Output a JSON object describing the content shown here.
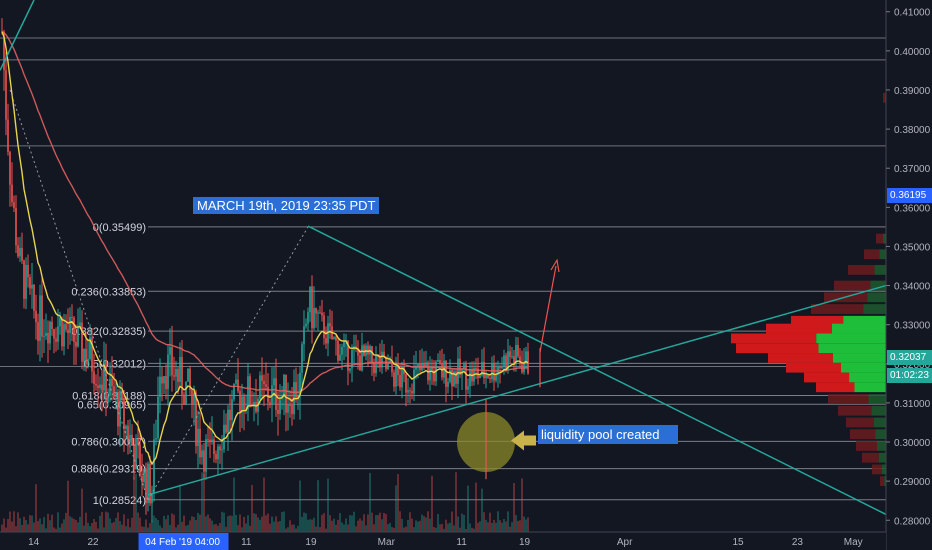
{
  "chart_data": {
    "type": "candlestick",
    "y_axis": {
      "range": [
        0.277,
        0.413
      ],
      "ticks": [
        "0.41000",
        "0.40000",
        "0.39000",
        "0.38000",
        "0.37000",
        "0.36000",
        "0.35000",
        "0.34000",
        "0.33000",
        "0.32000",
        "0.31000",
        "0.30000",
        "0.29000",
        "0.28000"
      ],
      "tick_values": [
        0.41,
        0.4,
        0.39,
        0.38,
        0.37,
        0.36,
        0.35,
        0.34,
        0.33,
        0.32,
        0.31,
        0.3,
        0.29,
        0.28
      ]
    },
    "x_axis": {
      "ticks": [
        {
          "label": "14",
          "frac": 0.038
        },
        {
          "label": "22",
          "frac": 0.105
        },
        {
          "label": "04 Feb '19  04:00",
          "frac": 0.206,
          "highlight": true
        },
        {
          "label": "11",
          "frac": 0.278
        },
        {
          "label": "19",
          "frac": 0.351
        },
        {
          "label": "Mar",
          "frac": 0.436
        },
        {
          "label": "11",
          "frac": 0.521
        },
        {
          "label": "19",
          "frac": 0.592
        },
        {
          "label": "Apr",
          "frac": 0.705
        },
        {
          "label": "15",
          "frac": 0.833
        },
        {
          "label": "23",
          "frac": 0.9
        },
        {
          "label": "May",
          "frac": 0.963
        }
      ]
    },
    "fib_levels": [
      {
        "label": "0(0.35499)",
        "value": 0.35499
      },
      {
        "label": "0.236(0.33853)",
        "value": 0.33853
      },
      {
        "label": "0.382(0.32835)",
        "value": 0.32835
      },
      {
        "label": "0.5(0.32012)",
        "value": 0.32012
      },
      {
        "label": "0.618(0.31188)",
        "value": 0.31188
      },
      {
        "label": "0.65(0.30965)",
        "value": 0.30965
      },
      {
        "label": "0.786(0.30017)",
        "value": 0.30017
      },
      {
        "label": "0.886(0.29319)",
        "value": 0.29319
      },
      {
        "label": "1(0.28524)",
        "value": 0.28524
      }
    ],
    "extra_lines": [
      0.4033,
      0.3977,
      0.3757,
      0.3193
    ],
    "last_price": "0.32037",
    "countdown": "01:02:23",
    "marker_price": "0.36195",
    "annotations": [
      "MARCH 19th, 2019 23:35 PDT",
      "liquidity pool created"
    ],
    "colors": {
      "up": "#26a69a",
      "down": "#ef5350",
      "ema_fast": "#e8d44d",
      "ema_slow": "#e06060",
      "trendline": "#26a69a",
      "fib": "#9598a1"
    }
  },
  "labels": {
    "note1": "MARCH 19th, 2019 23:35 PDT",
    "note2": "liquidity pool created",
    "last_price": "0.32037",
    "countdown": "01:02:23",
    "marker_price": "0.36195"
  }
}
